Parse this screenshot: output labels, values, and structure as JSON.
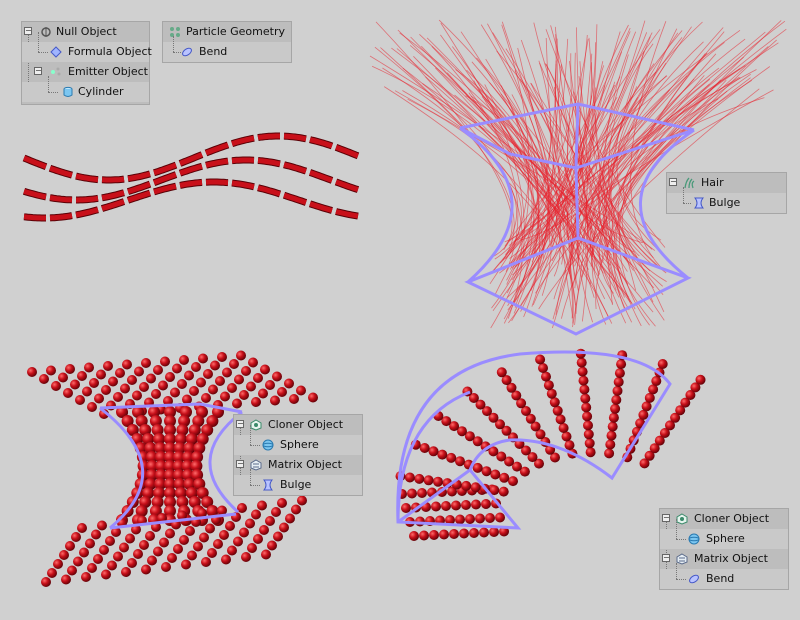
{
  "colors": {
    "background": "#d0d0d0",
    "object_red": "#c8101a",
    "deformer_cage": "#9a8cff",
    "hair_red": "#e8202c",
    "panel_bg": "#bdbdbd"
  },
  "panel1": {
    "null_object": {
      "label": "Null Object",
      "icon": "null-icon"
    },
    "formula_object": {
      "label": "Formula Object",
      "icon": "formula-icon"
    },
    "emitter_object": {
      "label": "Emitter Object",
      "icon": "emitter-icon"
    },
    "cylinder": {
      "label": "Cylinder",
      "icon": "cylinder-icon"
    }
  },
  "panel2": {
    "particle_geometry": {
      "label": "Particle Geometry",
      "icon": "particle-geometry-icon"
    },
    "bend": {
      "label": "Bend",
      "icon": "bend-icon"
    }
  },
  "panel3": {
    "hair": {
      "label": "Hair",
      "icon": "hair-icon"
    },
    "bulge": {
      "label": "Bulge",
      "icon": "bulge-icon"
    }
  },
  "panel4": {
    "cloner_object": {
      "label": "Cloner Object",
      "icon": "cloner-icon"
    },
    "sphere": {
      "label": "Sphere",
      "icon": "sphere-icon"
    },
    "matrix_object": {
      "label": "Matrix Object",
      "icon": "matrix-icon"
    },
    "bulge": {
      "label": "Bulge",
      "icon": "bulge-icon"
    }
  },
  "panel5": {
    "cloner_object": {
      "label": "Cloner Object",
      "icon": "cloner-icon"
    },
    "sphere": {
      "label": "Sphere",
      "icon": "sphere-icon"
    },
    "matrix_object": {
      "label": "Matrix Object",
      "icon": "matrix-icon"
    },
    "bend": {
      "label": "Bend",
      "icon": "bend-icon"
    }
  }
}
